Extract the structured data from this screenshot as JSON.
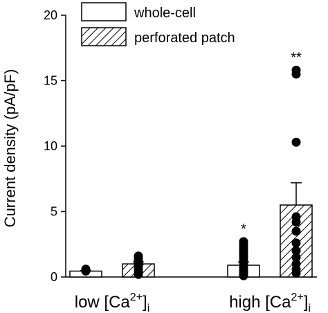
{
  "chart_data": {
    "type": "bar",
    "ylabel": "Current density (pA/pF)",
    "ylim": [
      0,
      20
    ],
    "yticks": [
      0,
      5,
      10,
      15,
      20
    ],
    "groups": [
      {
        "prefix": "low [Ca",
        "sup": "2+",
        "close": "]",
        "sub": "i"
      },
      {
        "prefix": "high [Ca",
        "sup": "2+",
        "close": "]",
        "sub": "i"
      }
    ],
    "series": [
      {
        "name": "whole-cell",
        "pattern": "open",
        "values": [
          0.45,
          0.9
        ],
        "errors": [
          0.05,
          0.25
        ],
        "significance": [
          "",
          "*"
        ],
        "points": [
          [
            0.45,
            0.5,
            0.55,
            0.6
          ],
          [
            0.1,
            0.2,
            0.35,
            0.5,
            0.7,
            0.9,
            1.1,
            1.3,
            1.5,
            1.7,
            1.9,
            2.1,
            2.3,
            2.5,
            2.7
          ]
        ]
      },
      {
        "name": "perforated patch",
        "pattern": "hatched",
        "values": [
          1.0,
          5.5
        ],
        "errors": [
          0.15,
          1.7
        ],
        "significance": [
          "",
          "**"
        ],
        "points": [
          [
            0.2,
            0.4,
            0.6,
            0.8,
            1.0,
            1.2,
            1.4,
            1.6
          ],
          [
            0.3,
            0.6,
            1.0,
            1.5,
            2.0,
            2.6,
            3.5,
            4.2,
            4.6,
            10.3,
            15.5,
            15.8
          ]
        ]
      }
    ],
    "legend_position": "top-center",
    "grid": false
  }
}
